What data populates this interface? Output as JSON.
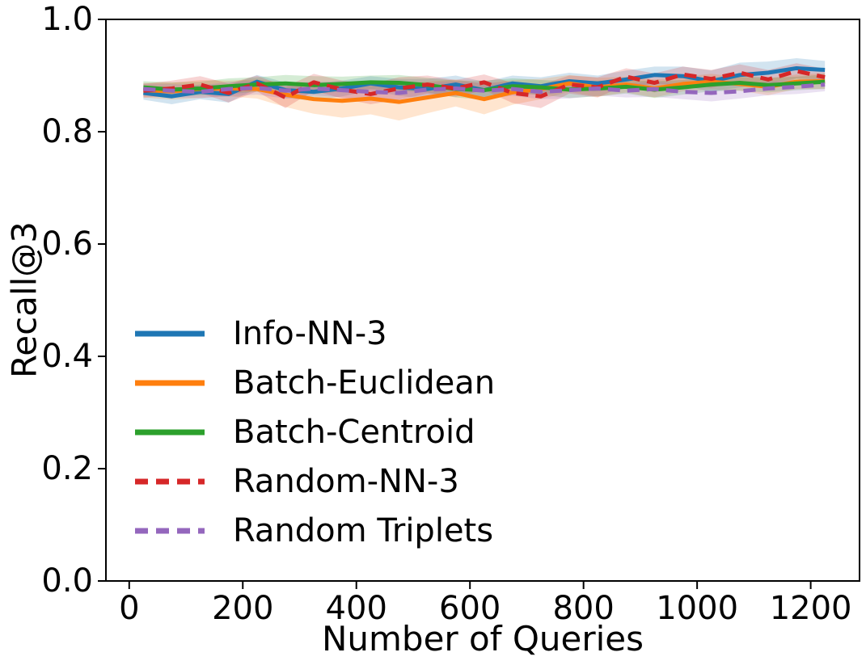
{
  "figure": {
    "background": "#ffffff",
    "text_color": "#000000"
  },
  "chart_data": {
    "type": "line",
    "title": "",
    "xlabel": "Number of Queries",
    "ylabel": "Recall@3",
    "xlim": [
      -41,
      1286
    ],
    "ylim": [
      0.0,
      1.0
    ],
    "grid": false,
    "legend_position": "lower-left",
    "band_opacity": 0.2,
    "xticks": [
      {
        "value": 0,
        "label": "0"
      },
      {
        "value": 200,
        "label": "200"
      },
      {
        "value": 400,
        "label": "400"
      },
      {
        "value": 600,
        "label": "600"
      },
      {
        "value": 800,
        "label": "800"
      },
      {
        "value": 1000,
        "label": "1000"
      },
      {
        "value": 1200,
        "label": "1200"
      }
    ],
    "yticks": [
      {
        "value": 0.0,
        "label": "0.0"
      },
      {
        "value": 0.2,
        "label": "0.2"
      },
      {
        "value": 0.4,
        "label": "0.4"
      },
      {
        "value": 0.6,
        "label": "0.6"
      },
      {
        "value": 0.8,
        "label": "0.8"
      },
      {
        "value": 1.0,
        "label": "1.0"
      }
    ],
    "x": [
      25,
      75,
      125,
      175,
      225,
      275,
      325,
      375,
      425,
      475,
      525,
      575,
      625,
      675,
      725,
      775,
      825,
      875,
      925,
      975,
      1025,
      1075,
      1125,
      1175,
      1225
    ],
    "series": [
      {
        "name": "Info-NN-3",
        "color": "#1f77b4",
        "line_style": "solid",
        "values": [
          0.869,
          0.863,
          0.871,
          0.867,
          0.889,
          0.874,
          0.871,
          0.877,
          0.886,
          0.879,
          0.876,
          0.884,
          0.874,
          0.886,
          0.881,
          0.89,
          0.886,
          0.893,
          0.901,
          0.899,
          0.89,
          0.901,
          0.905,
          0.913,
          0.91
        ],
        "band": [
          0.012,
          0.014,
          0.013,
          0.015,
          0.012,
          0.014,
          0.016,
          0.014,
          0.013,
          0.015,
          0.018,
          0.016,
          0.015,
          0.014,
          0.016,
          0.015,
          0.014,
          0.016,
          0.015,
          0.017,
          0.019,
          0.022,
          0.02,
          0.018,
          0.016
        ]
      },
      {
        "name": "Batch-Euclidean",
        "color": "#ff7f0e",
        "line_style": "solid",
        "values": [
          0.874,
          0.872,
          0.876,
          0.877,
          0.876,
          0.866,
          0.858,
          0.855,
          0.859,
          0.853,
          0.861,
          0.869,
          0.858,
          0.87,
          0.876,
          0.886,
          0.879,
          0.884,
          0.877,
          0.885,
          0.889,
          0.885,
          0.88,
          0.889,
          0.89
        ],
        "band": [
          0.013,
          0.015,
          0.016,
          0.014,
          0.017,
          0.022,
          0.026,
          0.03,
          0.028,
          0.033,
          0.028,
          0.024,
          0.027,
          0.022,
          0.018,
          0.015,
          0.017,
          0.014,
          0.016,
          0.013,
          0.014,
          0.012,
          0.015,
          0.013,
          0.014
        ]
      },
      {
        "name": "Batch-Centroid",
        "color": "#2ca02c",
        "line_style": "solid",
        "values": [
          0.879,
          0.875,
          0.877,
          0.881,
          0.884,
          0.886,
          0.883,
          0.885,
          0.888,
          0.887,
          0.883,
          0.876,
          0.874,
          0.881,
          0.879,
          0.875,
          0.877,
          0.88,
          0.875,
          0.879,
          0.884,
          0.887,
          0.883,
          0.886,
          0.889
        ],
        "band": [
          0.011,
          0.013,
          0.012,
          0.014,
          0.013,
          0.015,
          0.016,
          0.013,
          0.012,
          0.014,
          0.013,
          0.015,
          0.017,
          0.014,
          0.013,
          0.015,
          0.014,
          0.012,
          0.015,
          0.013,
          0.012,
          0.014,
          0.013,
          0.012,
          0.013
        ]
      },
      {
        "name": "Random-NN-3",
        "color": "#d62728",
        "line_style": "dashed",
        "values": [
          0.873,
          0.877,
          0.884,
          0.869,
          0.886,
          0.861,
          0.888,
          0.875,
          0.867,
          0.877,
          0.884,
          0.877,
          0.888,
          0.869,
          0.863,
          0.884,
          0.879,
          0.898,
          0.887,
          0.902,
          0.894,
          0.905,
          0.893,
          0.908,
          0.897
        ],
        "band": [
          0.012,
          0.014,
          0.015,
          0.017,
          0.014,
          0.019,
          0.015,
          0.016,
          0.018,
          0.02,
          0.016,
          0.015,
          0.014,
          0.018,
          0.021,
          0.016,
          0.018,
          0.015,
          0.017,
          0.014,
          0.016,
          0.015,
          0.017,
          0.014,
          0.015
        ]
      },
      {
        "name": "Random Triplets",
        "color": "#9467bd",
        "line_style": "dashed",
        "values": [
          0.876,
          0.873,
          0.871,
          0.876,
          0.878,
          0.873,
          0.877,
          0.874,
          0.871,
          0.869,
          0.875,
          0.877,
          0.873,
          0.876,
          0.871,
          0.874,
          0.877,
          0.873,
          0.876,
          0.871,
          0.869,
          0.872,
          0.877,
          0.88,
          0.884
        ],
        "band": [
          0.01,
          0.012,
          0.011,
          0.013,
          0.012,
          0.014,
          0.012,
          0.013,
          0.015,
          0.014,
          0.012,
          0.013,
          0.014,
          0.012,
          0.013,
          0.015,
          0.013,
          0.012,
          0.014,
          0.013,
          0.015,
          0.013,
          0.012,
          0.013,
          0.012
        ]
      }
    ]
  }
}
